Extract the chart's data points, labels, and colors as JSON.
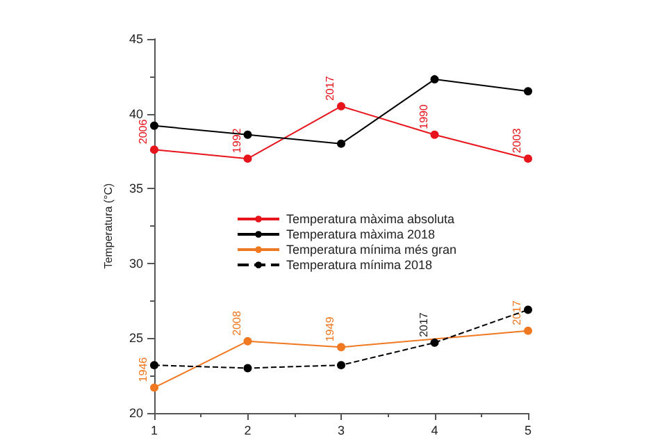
{
  "chart_data": {
    "type": "line",
    "ylabel": "Temperatura (°C)",
    "x": [
      1,
      2,
      3,
      4,
      5
    ],
    "xlim": [
      1,
      5
    ],
    "xticks": [
      1,
      2,
      3,
      4,
      5
    ],
    "ylim": [
      20,
      45
    ],
    "yticks": [
      20,
      25,
      30,
      35,
      40,
      45
    ],
    "series": [
      {
        "name": "Temperatura màxima absoluta",
        "color": "#e8141c",
        "values": [
          37.6,
          37.0,
          40.5,
          38.6,
          37.0
        ]
      },
      {
        "name": "Temperatura màxima 2018",
        "color": "#000000",
        "values": [
          39.2,
          38.6,
          38.0,
          42.3,
          41.5
        ]
      },
      {
        "name": "Temperatura mínima més gran",
        "color": "#f07820",
        "values": [
          21.7,
          24.8,
          24.4,
          null,
          25.5
        ]
      },
      {
        "name": "Temperatura mínima 2018",
        "color": "#000000",
        "values": [
          23.2,
          23.0,
          23.2,
          24.7,
          26.9
        ],
        "line_style": "dashed"
      }
    ],
    "annotations": [
      {
        "text": "2006",
        "x": 1,
        "y": 37.6
      },
      {
        "text": "1992",
        "x": 2,
        "y": 37.0
      },
      {
        "text": "2017",
        "x": 3,
        "y": 40.5
      },
      {
        "text": "1990",
        "x": 4,
        "y": 38.6
      },
      {
        "text": "2003",
        "x": 5,
        "y": 37.0
      },
      {
        "text": "1946",
        "x": 1,
        "y": 21.7
      },
      {
        "text": "2008",
        "x": 2,
        "y": 24.8
      },
      {
        "text": "1949",
        "x": 3,
        "y": 24.4
      },
      {
        "text": "2017",
        "x": 4,
        "y": 24.7
      },
      {
        "text": "2017",
        "x": 5,
        "y": 25.5
      }
    ],
    "marker": "circle",
    "grid": false,
    "legend": "center"
  }
}
